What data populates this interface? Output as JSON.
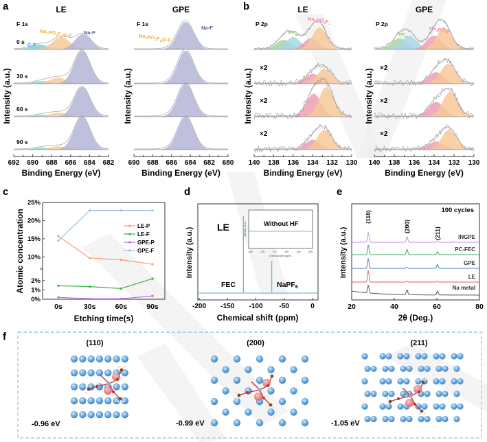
{
  "panel_labels": {
    "a": "a",
    "b": "b",
    "c": "c",
    "d": "d",
    "e": "e",
    "f": "f"
  },
  "colors": {
    "naf": "#b3b5d6",
    "napof": "#f7c99a",
    "cf": "#7fd3cf",
    "pf6_green": "#a9d4a0",
    "pf6_blue": "#a9d6e5",
    "napof_pink": "#ec9fb1",
    "le_p": "#f4a372",
    "le_f": "#3cb54a",
    "gpe_p": "#b86cf0",
    "gpe_f": "#9fbdf0",
    "nmr": "#7fb9cf",
    "na_atom": "#5d9fd6",
    "box_dash": "#a9cbe8",
    "watermark": "#d9d9d9"
  },
  "chart_data": [
    {
      "id": "a-LE",
      "type": "area",
      "title": "LE",
      "subtitle": "F 1s",
      "xlabel": "Binding Energy (eV)",
      "ylabel": "Intensity (a.u.)",
      "xlim": [
        692,
        682
      ],
      "xticks": [
        "692",
        "690",
        "688",
        "686",
        "684",
        "682"
      ],
      "peak_labels": [
        {
          "text": "C-F",
          "color": "#5b8ff0"
        },
        {
          "text": "NaxPOyFz/P-F",
          "color": "#f5b040"
        },
        {
          "text": "Na-F",
          "color": "#4a5c9a"
        }
      ],
      "spectra": [
        {
          "label": "0 s",
          "peaks": [
            {
              "species": "C-F",
              "center": 689.3,
              "height": 0.18
            },
            {
              "species": "NaxPOyFz/P-F",
              "center": 687.0,
              "height": 0.45
            },
            {
              "species": "Na-F",
              "center": 684.7,
              "height": 0.55
            }
          ]
        },
        {
          "label": "30 s",
          "peaks": [
            {
              "species": "C-F",
              "center": 689.0,
              "height": 0.08
            },
            {
              "species": "NaxPOyFz/P-F",
              "center": 687.3,
              "height": 0.18
            },
            {
              "species": "Na-F",
              "center": 684.8,
              "height": 1.0
            }
          ]
        },
        {
          "label": "60 s",
          "peaks": [
            {
              "species": "C-F",
              "center": 689.0,
              "height": 0.06
            },
            {
              "species": "NaxPOyFz/P-F",
              "center": 687.3,
              "height": 0.12
            },
            {
              "species": "Na-F",
              "center": 684.8,
              "height": 0.9
            }
          ]
        },
        {
          "label": "90 s",
          "peaks": [
            {
              "species": "C-F",
              "center": 689.0,
              "height": 0.06
            },
            {
              "species": "NaxPOyFz/P-F",
              "center": 687.3,
              "height": 0.1
            },
            {
              "species": "Na-F",
              "center": 684.8,
              "height": 1.0
            }
          ]
        }
      ]
    },
    {
      "id": "a-GPE",
      "type": "area",
      "title": "GPE",
      "subtitle": "F 1s",
      "xlabel": "Binding Energy (eV)",
      "ylabel": "Intensity (a.u.)",
      "xlim": [
        690,
        680
      ],
      "xticks": [
        "690",
        "688",
        "686",
        "684",
        "682",
        "680"
      ],
      "peak_labels": [
        {
          "text": "NaxPOyFz/P-F",
          "color": "#f5b040"
        },
        {
          "text": "Na-F",
          "color": "#4a5c9a"
        }
      ],
      "spectra": [
        {
          "label": "",
          "peaks": [
            {
              "species": "NaxPOyFz/P-F",
              "center": 685.5,
              "height": 0.05
            },
            {
              "species": "Na-F",
              "center": 684.5,
              "height": 1.0
            }
          ]
        },
        {
          "label": "",
          "peaks": [
            {
              "species": "NaxPOyFz/P-F",
              "center": 685.5,
              "height": 0.05
            },
            {
              "species": "Na-F",
              "center": 684.5,
              "height": 1.0
            }
          ]
        },
        {
          "label": "",
          "peaks": [
            {
              "species": "NaxPOyFz/P-F",
              "center": 686.0,
              "height": 0.04
            },
            {
              "species": "Na-F",
              "center": 684.5,
              "height": 1.0
            }
          ]
        },
        {
          "label": "",
          "peaks": [
            {
              "species": "NaxPOyFz/P-F",
              "center": 686.0,
              "height": 0.03
            },
            {
              "species": "Na-F",
              "center": 684.5,
              "height": 1.0
            }
          ]
        }
      ]
    },
    {
      "id": "b-LE",
      "type": "area",
      "title": "LE",
      "subtitle": "P 2p",
      "xlabel": "Binding Energy (eV)",
      "ylabel": "Intensity (a.u.)",
      "xlim": [
        140,
        130
      ],
      "xticks": [
        "140",
        "138",
        "136",
        "134",
        "132",
        "130"
      ],
      "peak_labels": [
        {
          "text": "PF6",
          "color": "#8fd37f"
        },
        {
          "text": "NaxPOyFz",
          "color": "#f08aa0"
        }
      ],
      "spectra": [
        {
          "label": "",
          "peaks": [
            {
              "species": "PF6-a",
              "center": 137.0,
              "height": 0.35
            },
            {
              "species": "PF6-b",
              "center": 136.0,
              "height": 0.45
            },
            {
              "species": "NaxPOyFz-a",
              "center": 134.2,
              "height": 0.4
            },
            {
              "species": "NaxPOyFz-b",
              "center": 133.3,
              "height": 0.8
            }
          ]
        },
        {
          "label": "×2",
          "peaks": [
            {
              "species": "NaxPOyFz-a",
              "center": 134.0,
              "height": 0.3
            },
            {
              "species": "NaxPOyFz-b",
              "center": 132.8,
              "height": 0.45
            }
          ]
        },
        {
          "label": "×2",
          "peaks": [
            {
              "species": "NaxPOyFz-a",
              "center": 133.9,
              "height": 0.7
            },
            {
              "species": "NaxPOyFz-b",
              "center": 132.6,
              "height": 0.9
            }
          ]
        },
        {
          "label": "×2",
          "peaks": [
            {
              "species": "NaxPOyFz-a",
              "center": 134.0,
              "height": 0.3
            },
            {
              "species": "NaxPOyFz-b",
              "center": 132.8,
              "height": 0.6
            }
          ]
        }
      ]
    },
    {
      "id": "b-GPE",
      "type": "area",
      "title": "GPE",
      "subtitle": "P 2p",
      "xlabel": "Binding Energy (eV)",
      "ylabel": "Intensity (a.u.)",
      "xlim": [
        140,
        130
      ],
      "xticks": [
        "140",
        "138",
        "136",
        "134",
        "132",
        "130"
      ],
      "peak_labels": [
        {
          "text": "PF6",
          "color": "#8fd37f"
        },
        {
          "text": "NaxPOyFz",
          "color": "#f08aa0"
        }
      ],
      "spectra": [
        {
          "label": "",
          "peaks": [
            {
              "species": "PF6-a",
              "center": 137.5,
              "height": 0.4
            },
            {
              "species": "PF6-b",
              "center": 136.5,
              "height": 0.5
            },
            {
              "species": "NaxPOyFz-a",
              "center": 134.0,
              "height": 0.5
            },
            {
              "species": "NaxPOyFz-b",
              "center": 133.0,
              "height": 0.8
            }
          ]
        },
        {
          "label": "×2",
          "peaks": [
            {
              "species": "NaxPOyFz-a",
              "center": 133.8,
              "height": 0.35
            },
            {
              "species": "NaxPOyFz-b",
              "center": 132.6,
              "height": 0.6
            }
          ]
        },
        {
          "label": "×2",
          "peaks": [
            {
              "species": "NaxPOyFz-a",
              "center": 133.8,
              "height": 0.45
            },
            {
              "species": "NaxPOyFz-b",
              "center": 132.4,
              "height": 0.75
            }
          ]
        },
        {
          "label": "×2",
          "peaks": [
            {
              "species": "NaxPOyFz-a",
              "center": 133.8,
              "height": 0.25
            },
            {
              "species": "NaxPOyFz-b",
              "center": 132.5,
              "height": 0.6
            }
          ]
        }
      ]
    },
    {
      "id": "c",
      "type": "line",
      "xlabel": "Etching time(s)",
      "ylabel": "Atomic concentration",
      "categories": [
        "0s",
        "30s",
        "60s",
        "90s"
      ],
      "yticks_lower": [
        "0%",
        "1%",
        "2%"
      ],
      "yticks_upper": [
        "10%",
        "15%",
        "20%",
        "25%"
      ],
      "axis_break": true,
      "legend": "right",
      "series": [
        {
          "name": "LE-P",
          "values": [
            15.7,
            9.7,
            9.2,
            8.0
          ]
        },
        {
          "name": "LE-F",
          "values": [
            1.45,
            1.35,
            1.15,
            2.2
          ]
        },
        {
          "name": "GPE-P",
          "values": [
            0.2,
            0.05,
            0.05,
            0.35
          ]
        },
        {
          "name": "GPE-F",
          "values": [
            14.5,
            22.8,
            22.8,
            22.8
          ]
        }
      ]
    },
    {
      "id": "d",
      "type": "line",
      "title": "LE",
      "xlabel": "Chemical shift (ppm)",
      "ylabel": "Intensity (a.u.)",
      "xlim": [
        -200,
        0
      ],
      "xticks": [
        "-200",
        "-150",
        "-100",
        "-50",
        "0"
      ],
      "peaks": [
        {
          "label": "FEC",
          "shift": -122,
          "height": 1.0
        },
        {
          "label": "NaPF6",
          "shift": -72,
          "height": 0.42
        }
      ],
      "inset": {
        "title": "Without HF",
        "xlabel": "Chemical shift (ppm)",
        "ylabel": "Intensity (a.u.)",
        "xticks": [
          "-180",
          "-175",
          "-170",
          "-165",
          "-160",
          "-155"
        ]
      }
    },
    {
      "id": "e",
      "type": "line",
      "title": "100 cycles",
      "xlabel": "2θ (Deg.)",
      "ylabel": "Intensity (a.u.)",
      "xlim": [
        20,
        80
      ],
      "xticks": [
        "20",
        "40",
        "60",
        "80"
      ],
      "reflections": [
        {
          "label": "(110)",
          "two_theta": 27.8
        },
        {
          "label": "(200)",
          "two_theta": 46.0
        },
        {
          "label": "(211)",
          "two_theta": 60.3
        }
      ],
      "series": [
        {
          "name": "INGPE",
          "color": "#c58ae8",
          "peaks": [
            1.0,
            0.6,
            0.15
          ]
        },
        {
          "name": "PC-FEC",
          "color": "#3fae5f",
          "peaks": [
            1.0,
            0.55,
            0.3
          ]
        },
        {
          "name": "GPE",
          "color": "#3a7fd6",
          "peaks": [
            1.0,
            0.1,
            0.4
          ]
        },
        {
          "name": "LE",
          "color": "#e35b5b",
          "peaks": [
            1.2,
            0.1,
            0.1
          ]
        },
        {
          "name": "Na metal",
          "color": "#555555",
          "peaks": [
            0.8,
            0.5,
            0.4
          ]
        }
      ]
    }
  ],
  "panel_f": {
    "structures": [
      {
        "facet": "(110)",
        "energy": "-0.96 eV"
      },
      {
        "facet": "(200)",
        "energy": "-0.99 eV"
      },
      {
        "facet": "(211)",
        "energy": "-1.05 eV"
      }
    ]
  }
}
